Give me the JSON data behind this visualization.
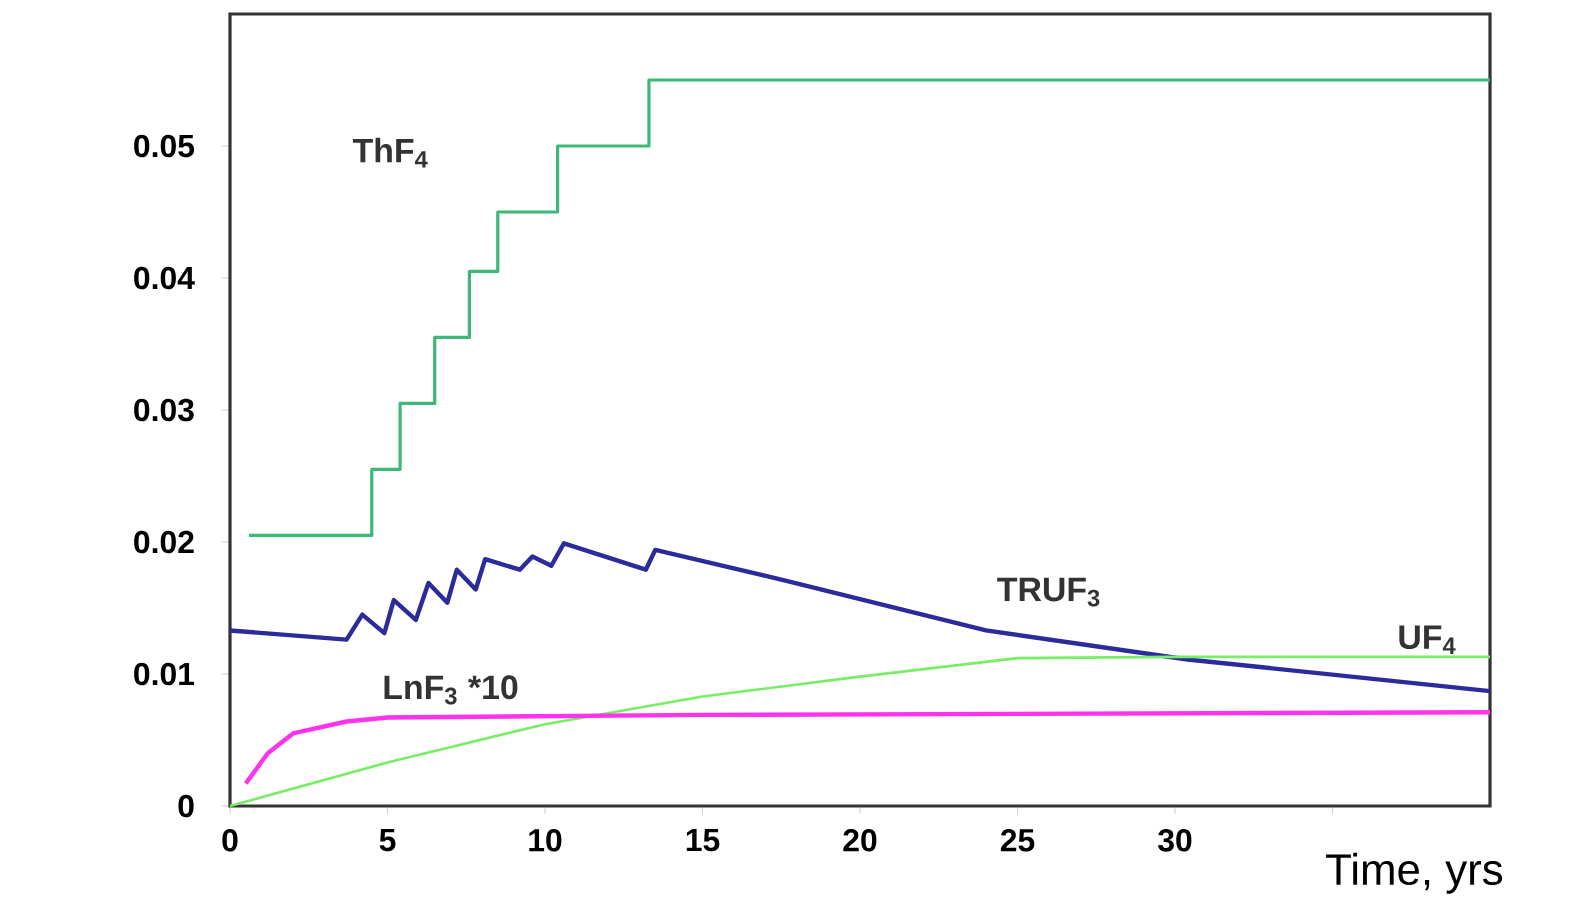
{
  "chart_data": {
    "type": "line",
    "xlabel": "Time, yrs",
    "xlim": [
      0,
      40
    ],
    "ylim": [
      0,
      0.06
    ],
    "xticks": [
      0,
      5,
      10,
      15,
      20,
      25,
      30,
      {
        "value": 35,
        "label": null
      }
    ],
    "yticks": [
      0,
      0.01,
      0.02,
      0.03,
      0.04,
      0.05
    ],
    "grid": false,
    "legend": false,
    "marker": "none",
    "line_style": "solid",
    "series": [
      {
        "name": "ThF$_{4}$",
        "type": "step",
        "color": "#3cb878",
        "x": [
          0.6,
          4.5,
          5.4,
          6.5,
          7.6,
          8.5,
          10.4,
          13.3,
          40
        ],
        "values": [
          0.0205,
          0.0255,
          0.0305,
          0.0355,
          0.0405,
          0.045,
          0.05,
          0.055,
          0.055
        ]
      },
      {
        "name": "TRUF$_{3}$",
        "color": "#2b2b9b",
        "x": [
          0,
          3.7,
          4.2,
          4.9,
          5.2,
          5.9,
          6.3,
          6.9,
          7.2,
          7.8,
          8.1,
          9.2,
          9.6,
          10.2,
          10.6,
          13.2,
          13.5,
          17.6,
          24,
          30.4,
          40
        ],
        "values": [
          0.0133,
          0.0126,
          0.0145,
          0.0131,
          0.0156,
          0.0141,
          0.0169,
          0.0154,
          0.0179,
          0.0164,
          0.0187,
          0.0179,
          0.0189,
          0.0182,
          0.0199,
          0.0179,
          0.0194,
          0.0171,
          0.0133,
          0.0111,
          0.0087
        ]
      },
      {
        "name": "UF$_{4}$",
        "color": "#77ee66",
        "x": [
          0,
          5,
          10,
          15,
          20,
          25,
          30,
          40
        ],
        "values": [
          0,
          0.0033,
          0.0062,
          0.0083,
          0.0098,
          0.0112,
          0.0113,
          0.0113
        ]
      },
      {
        "name": "LnF$_{3}$ *10",
        "color": "#ff33ee",
        "x": [
          0.5,
          1.2,
          2,
          3.7,
          5,
          15,
          40
        ],
        "values": [
          0.0017,
          0.004,
          0.0055,
          0.0064,
          0.0067,
          0.0069,
          0.0071
        ]
      }
    ]
  }
}
